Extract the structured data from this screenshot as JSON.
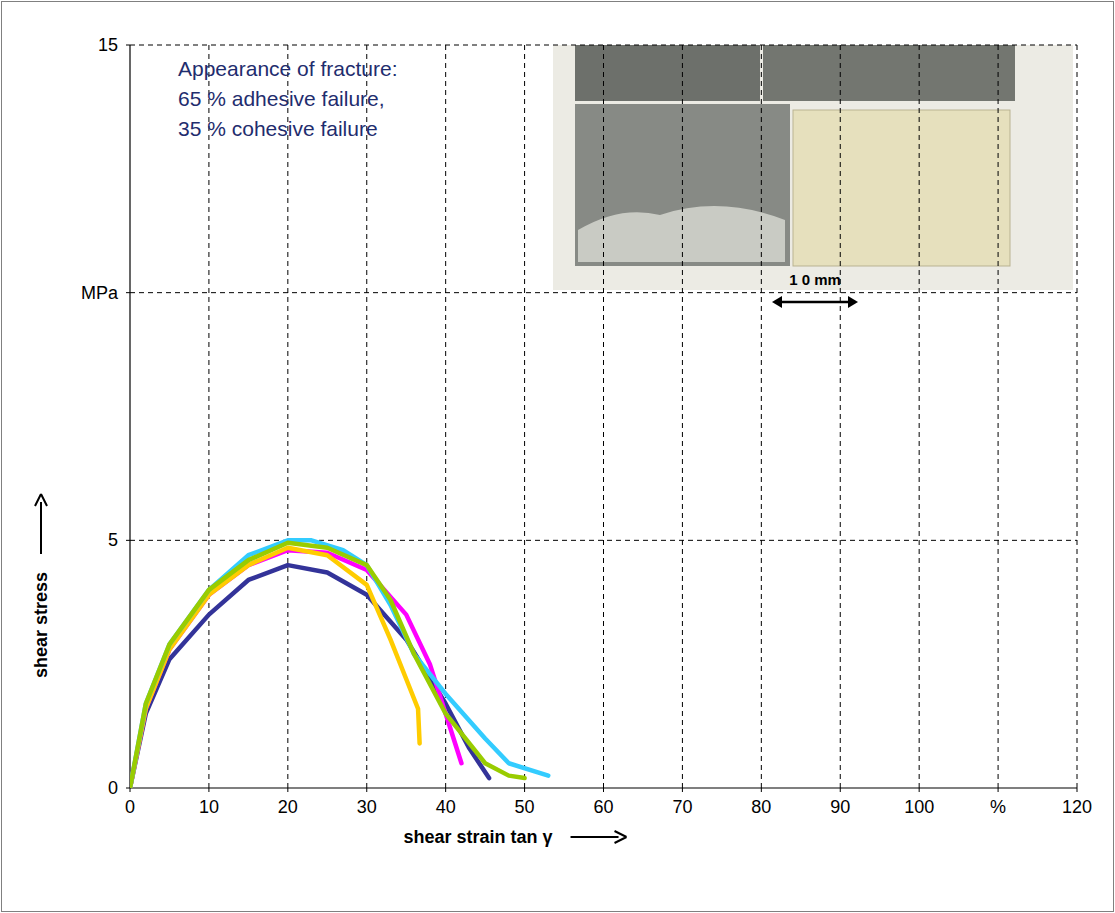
{
  "chart_data": {
    "type": "line",
    "x_label": "shear strain tan γ",
    "y_label": "shear stress",
    "annotations": [
      "Appearance of fracture:",
      "65 % adhesive failure,",
      "35 % cohesive failure",
      "1 0 mm"
    ],
    "xlim": [
      0,
      120
    ],
    "ylim": [
      0,
      15
    ],
    "xticks": [
      0,
      10,
      20,
      30,
      40,
      50,
      60,
      70,
      80,
      90,
      100,
      {
        "value": 110,
        "label": "%"
      },
      120
    ],
    "yticks": [
      0,
      5,
      {
        "value": 10,
        "label": "MPa"
      },
      15
    ],
    "grid": true,
    "series": [
      {
        "color": "#333399",
        "x": [
          0,
          2,
          5,
          10,
          15,
          20,
          25,
          30,
          35,
          40,
          43,
          45.5
        ],
        "values": [
          0,
          1.5,
          2.6,
          3.5,
          4.2,
          4.5,
          4.35,
          3.9,
          3.0,
          1.7,
          0.8,
          0.2
        ]
      },
      {
        "color": "#ff00ff",
        "x": [
          0,
          2,
          5,
          10,
          15,
          20,
          25,
          30,
          35,
          38,
          40,
          42
        ],
        "values": [
          0,
          1.6,
          2.8,
          3.9,
          4.5,
          4.8,
          4.75,
          4.4,
          3.5,
          2.5,
          1.5,
          0.5
        ]
      },
      {
        "color": "#ffcc00",
        "x": [
          0,
          2,
          5,
          10,
          15,
          20,
          25,
          30,
          33,
          35,
          36.5,
          36.7
        ],
        "values": [
          0,
          1.6,
          2.8,
          3.9,
          4.5,
          4.85,
          4.7,
          4.1,
          3.0,
          2.2,
          1.6,
          0.9
        ]
      },
      {
        "color": "#33ccff",
        "x": [
          0,
          2,
          5,
          10,
          15,
          20,
          23,
          27,
          30,
          33,
          36,
          40,
          45,
          48,
          53
        ],
        "values": [
          0,
          1.7,
          2.9,
          4.0,
          4.7,
          5.0,
          5.0,
          4.8,
          4.5,
          3.7,
          2.7,
          1.9,
          1.0,
          0.5,
          0.25
        ]
      },
      {
        "color": "#99cc00",
        "x": [
          0,
          2,
          5,
          10,
          15,
          20,
          25,
          30,
          33,
          36,
          40,
          45,
          48,
          50
        ],
        "values": [
          0,
          1.7,
          2.9,
          4.0,
          4.6,
          4.95,
          4.85,
          4.5,
          3.8,
          2.7,
          1.5,
          0.5,
          0.25,
          0.2
        ]
      }
    ]
  }
}
